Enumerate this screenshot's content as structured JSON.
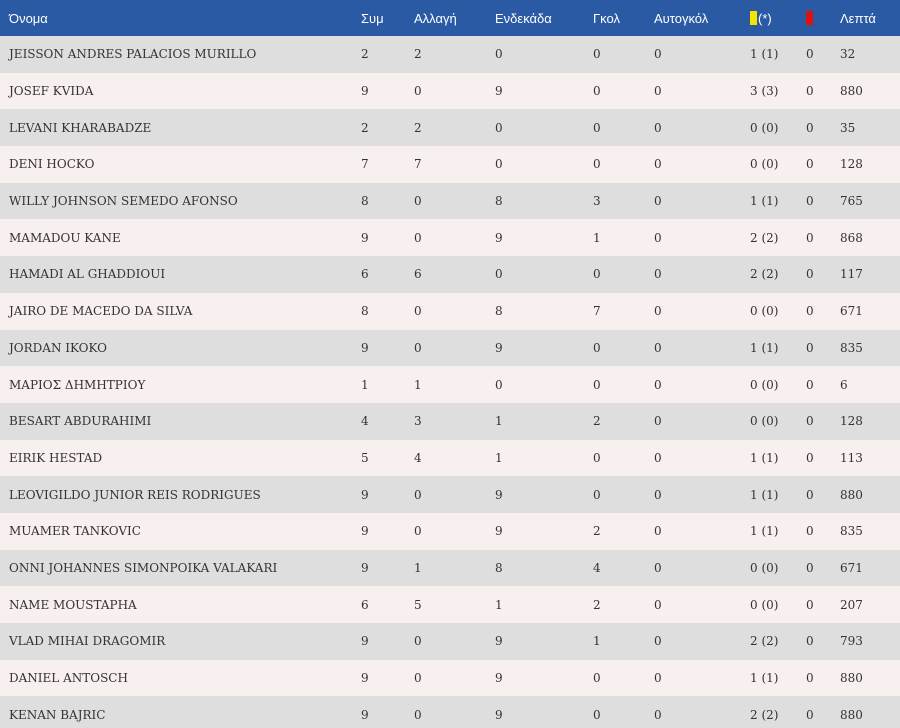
{
  "headers": {
    "name": "Όνομα",
    "apps": "Συμ",
    "sub": "Αλλαγή",
    "starts": "Ενδεκάδα",
    "goals": "Γκολ",
    "own_goals": "Αυτογκόλ",
    "yellow_suffix": "(*)",
    "minutes": "Λεπτά"
  },
  "colors": {
    "header_bg": "#2b5aa5",
    "row_odd": "#dedede",
    "row_even": "#f8efef",
    "yellow_card": "#f2e600",
    "red_card": "#e01010"
  },
  "icons": {
    "yellow": "yellow-card-icon",
    "red": "red-card-icon"
  },
  "rows": [
    {
      "name": "JEISSON ANDRES PALACIOS MURILLO",
      "apps": "2",
      "sub": "2",
      "starts": "0",
      "goals": "0",
      "own_goals": "0",
      "yellow": "1 (1)",
      "red": "0",
      "minutes": "32"
    },
    {
      "name": "JOSEF KVIDA",
      "apps": "9",
      "sub": "0",
      "starts": "9",
      "goals": "0",
      "own_goals": "0",
      "yellow": "3 (3)",
      "red": "0",
      "minutes": "880"
    },
    {
      "name": "LEVANI KHARABADZE",
      "apps": "2",
      "sub": "2",
      "starts": "0",
      "goals": "0",
      "own_goals": "0",
      "yellow": "0 (0)",
      "red": "0",
      "minutes": "35"
    },
    {
      "name": "DENI HOCKO",
      "apps": "7",
      "sub": "7",
      "starts": "0",
      "goals": "0",
      "own_goals": "0",
      "yellow": "0 (0)",
      "red": "0",
      "minutes": "128"
    },
    {
      "name": "WILLY JOHNSON SEMEDO AFONSO",
      "apps": "8",
      "sub": "0",
      "starts": "8",
      "goals": "3",
      "own_goals": "0",
      "yellow": "1 (1)",
      "red": "0",
      "minutes": "765"
    },
    {
      "name": "MAMADOU KANE",
      "apps": "9",
      "sub": "0",
      "starts": "9",
      "goals": "1",
      "own_goals": "0",
      "yellow": "2 (2)",
      "red": "0",
      "minutes": "868"
    },
    {
      "name": "HAMADI AL GHADDIOUI",
      "apps": "6",
      "sub": "6",
      "starts": "0",
      "goals": "0",
      "own_goals": "0",
      "yellow": "2 (2)",
      "red": "0",
      "minutes": "117"
    },
    {
      "name": "JAIRO DE MACEDO DA SILVA",
      "apps": "8",
      "sub": "0",
      "starts": "8",
      "goals": "7",
      "own_goals": "0",
      "yellow": "0 (0)",
      "red": "0",
      "minutes": "671"
    },
    {
      "name": "JORDAN IKOKO",
      "apps": "9",
      "sub": "0",
      "starts": "9",
      "goals": "0",
      "own_goals": "0",
      "yellow": "1 (1)",
      "red": "0",
      "minutes": "835"
    },
    {
      "name": "ΜΑΡΙΟΣ ΔΗΜΗΤΡΙΟΥ",
      "apps": "1",
      "sub": "1",
      "starts": "0",
      "goals": "0",
      "own_goals": "0",
      "yellow": "0 (0)",
      "red": "0",
      "minutes": "6"
    },
    {
      "name": "BESART ABDURAHIMI",
      "apps": "4",
      "sub": "3",
      "starts": "1",
      "goals": "2",
      "own_goals": "0",
      "yellow": "0 (0)",
      "red": "0",
      "minutes": "128"
    },
    {
      "name": "EIRIK HESTAD",
      "apps": "5",
      "sub": "4",
      "starts": "1",
      "goals": "0",
      "own_goals": "0",
      "yellow": "1 (1)",
      "red": "0",
      "minutes": "113"
    },
    {
      "name": "LEOVIGILDO JUNIOR REIS RODRIGUES",
      "apps": "9",
      "sub": "0",
      "starts": "9",
      "goals": "0",
      "own_goals": "0",
      "yellow": "1 (1)",
      "red": "0",
      "minutes": "880"
    },
    {
      "name": "MUAMER TANKOVIC",
      "apps": "9",
      "sub": "0",
      "starts": "9",
      "goals": "2",
      "own_goals": "0",
      "yellow": "1 (1)",
      "red": "0",
      "minutes": "835"
    },
    {
      "name": "ONNI JOHANNES SIMONPOIKA VALAKARI",
      "apps": "9",
      "sub": "1",
      "starts": "8",
      "goals": "4",
      "own_goals": "0",
      "yellow": "0 (0)",
      "red": "0",
      "minutes": "671"
    },
    {
      "name": "NAME MOUSTAPHA",
      "apps": "6",
      "sub": "5",
      "starts": "1",
      "goals": "2",
      "own_goals": "0",
      "yellow": "0 (0)",
      "red": "0",
      "minutes": "207"
    },
    {
      "name": "VLAD MIHAI DRAGOMIR",
      "apps": "9",
      "sub": "0",
      "starts": "9",
      "goals": "1",
      "own_goals": "0",
      "yellow": "2 (2)",
      "red": "0",
      "minutes": "793"
    },
    {
      "name": "DANIEL ANTOSCH",
      "apps": "9",
      "sub": "0",
      "starts": "9",
      "goals": "0",
      "own_goals": "0",
      "yellow": "1 (1)",
      "red": "0",
      "minutes": "880"
    },
    {
      "name": "KENAN BAJRIC",
      "apps": "9",
      "sub": "0",
      "starts": "9",
      "goals": "0",
      "own_goals": "0",
      "yellow": "2 (2)",
      "red": "0",
      "minutes": "880"
    }
  ]
}
